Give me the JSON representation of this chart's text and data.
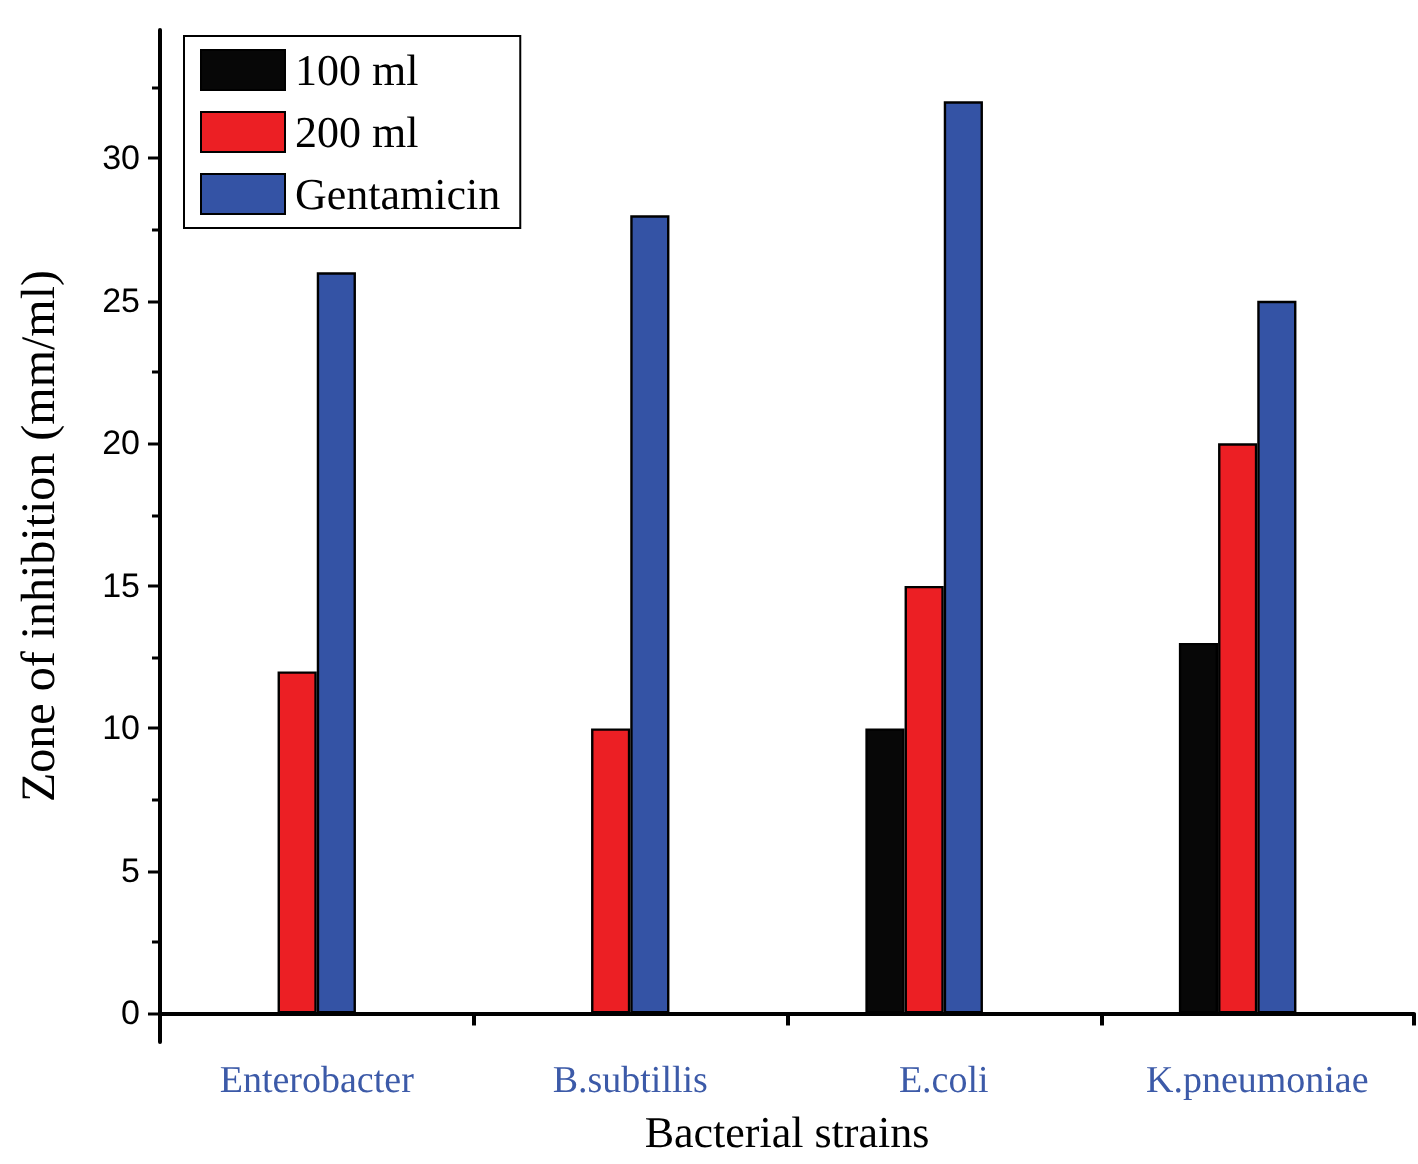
{
  "chart_data": {
    "type": "bar",
    "xlabel": "Bacterial strains",
    "ylabel": "Zone of inhibition (mm/ml)",
    "categories": [
      "Enterobacter",
      "B.subtillis",
      "E.coli",
      "K.pneumoniae"
    ],
    "series": [
      {
        "name": "100 ml",
        "color": "#070707",
        "values": [
          0,
          0,
          10,
          13
        ]
      },
      {
        "name": "200 ml",
        "color": "#ec1f24",
        "values": [
          12,
          10,
          15,
          20
        ]
      },
      {
        "name": "Gentamicin",
        "color": "#3453a5",
        "values": [
          26,
          28,
          32,
          25
        ]
      }
    ],
    "ylim": [
      -1,
      34.5
    ],
    "yticks": [
      0,
      5,
      10,
      15,
      20,
      25,
      30
    ],
    "grid": false,
    "legend": "top left"
  }
}
